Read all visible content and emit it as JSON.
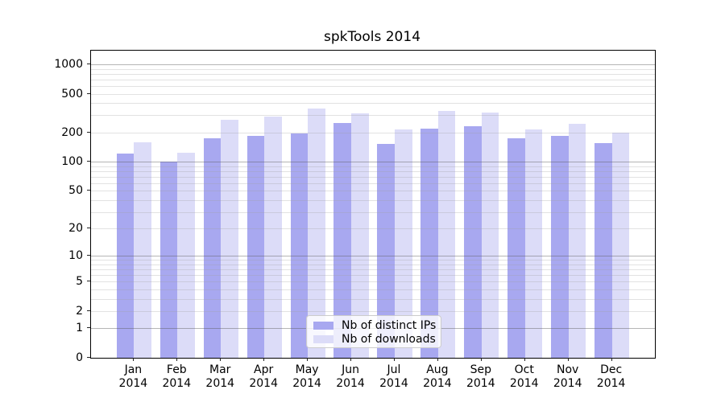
{
  "chart_data": {
    "type": "bar",
    "title": "spkTools 2014",
    "x_year": "2014",
    "categories": [
      "Jan",
      "Feb",
      "Mar",
      "Apr",
      "May",
      "Jun",
      "Jul",
      "Aug",
      "Sep",
      "Oct",
      "Nov",
      "Dec"
    ],
    "series": [
      {
        "name": "Nb of distinct IPs",
        "color": "#a8a8f0",
        "values": [
          122,
          100,
          175,
          185,
          195,
          250,
          152,
          220,
          232,
          175,
          185,
          155
        ]
      },
      {
        "name": "Nb of downloads",
        "color": "#dcdcf8",
        "values": [
          158,
          123,
          270,
          290,
          355,
          315,
          215,
          335,
          320,
          215,
          247,
          198
        ]
      }
    ],
    "y_scale": "log1p",
    "y_ticks": [
      1000,
      500,
      200,
      100,
      50,
      20,
      10,
      5,
      2,
      1,
      0
    ],
    "y_major_gridlines": [
      1,
      10,
      100,
      1000
    ],
    "y_minor_gridlines": [
      2,
      3,
      4,
      5,
      6,
      7,
      8,
      9,
      20,
      30,
      40,
      50,
      60,
      70,
      80,
      90,
      200,
      300,
      400,
      500,
      600,
      700,
      800,
      900
    ],
    "ylim": [
      0,
      1380
    ],
    "grid": true,
    "legend_position": "lower center",
    "colors": {
      "major_gridline": "#b5b5b5",
      "minor_gridline": "#e2e2e2",
      "axis": "#000000",
      "legend_border": "#cccccc"
    }
  }
}
